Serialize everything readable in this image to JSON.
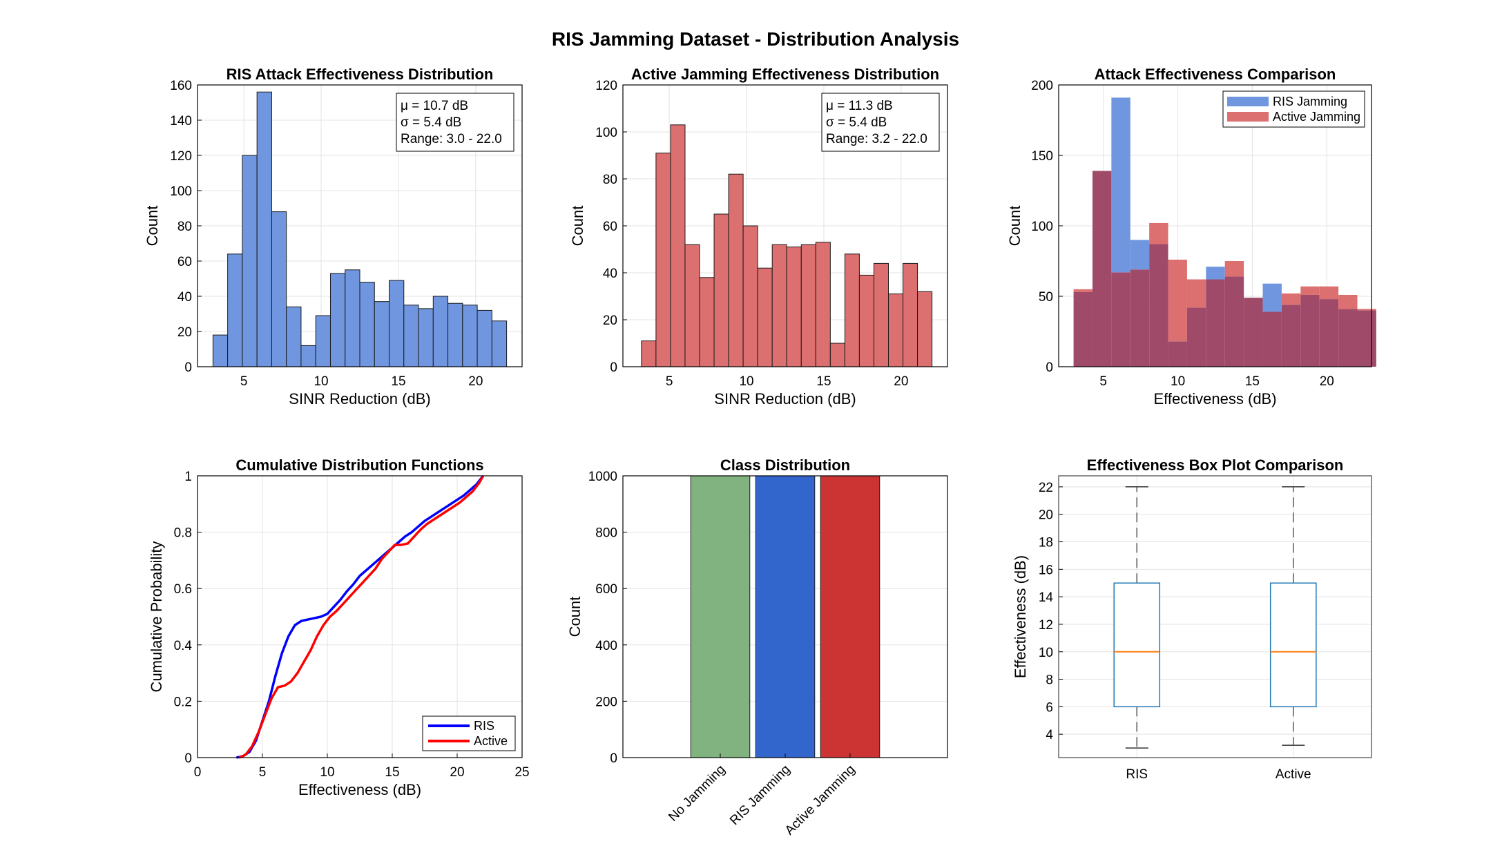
{
  "figure": {
    "title": "RIS Jamming Dataset - Distribution Analysis"
  },
  "colors": {
    "ris": "#6f96de",
    "active": "#dc6f6f",
    "overlap": "#a04a6a",
    "cdf_ris": "#0000ff",
    "cdf_active": "#ff0000",
    "class_no": "#80b380",
    "class_ris": "#3366cc",
    "class_active": "#cc3333",
    "box": "#1f77b4",
    "median": "#ff7f0e"
  },
  "chart_data": [
    {
      "id": "ris_hist",
      "type": "bar",
      "title": "RIS Attack Effectiveness Distribution",
      "xlabel": "SINR Reduction (dB)",
      "ylabel": "Count",
      "xlim": [
        2,
        23
      ],
      "ylim": [
        0,
        160
      ],
      "xticks": [
        5,
        10,
        15,
        20
      ],
      "yticks": [
        0,
        20,
        40,
        60,
        80,
        100,
        120,
        140,
        160
      ],
      "bin_start": 3.0,
      "bin_width": 0.95,
      "values": [
        18,
        64,
        120,
        156,
        88,
        34,
        12,
        29,
        53,
        55,
        48,
        37,
        49,
        35,
        33,
        40,
        36,
        35,
        32,
        26
      ],
      "stats": [
        "μ = 10.7 dB",
        "σ = 5.4 dB",
        "Range: 3.0 - 22.0"
      ]
    },
    {
      "id": "active_hist",
      "type": "bar",
      "title": "Active Jamming Effectiveness Distribution",
      "xlabel": "SINR Reduction (dB)",
      "ylabel": "Count",
      "xlim": [
        2,
        23
      ],
      "ylim": [
        0,
        120
      ],
      "xticks": [
        5,
        10,
        15,
        20
      ],
      "yticks": [
        0,
        20,
        40,
        60,
        80,
        100,
        120
      ],
      "bin_start": 3.2,
      "bin_width": 0.94,
      "values": [
        11,
        91,
        103,
        52,
        38,
        65,
        82,
        60,
        42,
        52,
        51,
        52,
        53,
        10,
        48,
        39,
        44,
        31,
        44,
        32
      ],
      "stats": [
        "μ = 11.3 dB",
        "σ = 5.4 dB",
        "Range: 3.2 - 22.0"
      ]
    },
    {
      "id": "comparison_hist",
      "type": "bar",
      "title": "Attack Effectiveness Comparison",
      "xlabel": "Effectiveness (dB)",
      "ylabel": "Count",
      "xlim": [
        2,
        23
      ],
      "ylim": [
        0,
        200
      ],
      "xticks": [
        5,
        10,
        15,
        20
      ],
      "yticks": [
        0,
        50,
        100,
        150,
        200
      ],
      "bin_start": 3.0,
      "bin_width": 1.27,
      "series": [
        {
          "name": "RIS Jamming",
          "values": [
            53,
            139,
            191,
            90,
            87,
            18,
            42,
            71,
            64,
            49,
            59,
            44,
            51,
            48,
            41,
            40
          ]
        },
        {
          "name": "Active Jamming",
          "values": [
            55,
            139,
            67,
            69,
            102,
            76,
            62,
            62,
            75,
            49,
            39,
            52,
            57,
            57,
            51,
            41
          ]
        }
      ]
    },
    {
      "id": "cdf",
      "type": "line",
      "title": "Cumulative Distribution Functions",
      "xlabel": "Effectiveness (dB)",
      "ylabel": "Cumulative Probability",
      "xlim": [
        0,
        25
      ],
      "ylim": [
        0,
        1
      ],
      "xticks": [
        0,
        5,
        10,
        15,
        20,
        25
      ],
      "yticks": [
        0,
        0.2,
        0.4,
        0.6,
        0.8,
        1
      ],
      "legend_position": "bottom-right",
      "series": [
        {
          "name": "RIS",
          "x": [
            3.0,
            3.5,
            4.0,
            4.5,
            5.0,
            5.5,
            6.0,
            6.5,
            7.0,
            7.5,
            8.0,
            8.5,
            9.0,
            9.5,
            10.0,
            10.5,
            11.0,
            11.5,
            12.0,
            12.5,
            13.0,
            13.5,
            14.0,
            14.5,
            15.0,
            15.5,
            16.0,
            16.5,
            17.0,
            17.5,
            18.0,
            18.5,
            19.0,
            19.5,
            20.0,
            20.5,
            21.0,
            21.5,
            22.0
          ],
          "y": [
            0.0,
            0.005,
            0.02,
            0.06,
            0.13,
            0.2,
            0.29,
            0.37,
            0.43,
            0.47,
            0.485,
            0.49,
            0.495,
            0.5,
            0.51,
            0.535,
            0.56,
            0.59,
            0.615,
            0.645,
            0.665,
            0.685,
            0.705,
            0.725,
            0.745,
            0.765,
            0.785,
            0.8,
            0.82,
            0.84,
            0.855,
            0.87,
            0.885,
            0.9,
            0.915,
            0.93,
            0.95,
            0.97,
            1.0
          ]
        },
        {
          "name": "Active",
          "x": [
            3.2,
            3.7,
            4.2,
            4.7,
            5.2,
            5.7,
            6.2,
            6.7,
            7.2,
            7.7,
            8.2,
            8.7,
            9.2,
            9.7,
            10.2,
            10.7,
            11.2,
            11.7,
            12.2,
            12.7,
            13.2,
            13.7,
            14.2,
            14.7,
            15.2,
            15.7,
            16.2,
            16.7,
            17.2,
            17.7,
            18.2,
            18.7,
            19.2,
            19.7,
            20.2,
            20.7,
            21.2,
            21.7,
            22.0
          ],
          "y": [
            0.0,
            0.01,
            0.04,
            0.09,
            0.15,
            0.21,
            0.25,
            0.255,
            0.27,
            0.3,
            0.34,
            0.38,
            0.43,
            0.47,
            0.5,
            0.52,
            0.545,
            0.57,
            0.595,
            0.62,
            0.645,
            0.67,
            0.705,
            0.73,
            0.755,
            0.755,
            0.76,
            0.785,
            0.81,
            0.83,
            0.845,
            0.86,
            0.875,
            0.89,
            0.905,
            0.925,
            0.945,
            0.975,
            1.0
          ]
        }
      ]
    },
    {
      "id": "class_dist",
      "type": "bar",
      "title": "Class Distribution",
      "xlabel": "",
      "ylabel": "Count",
      "ylim": [
        0,
        1000
      ],
      "yticks": [
        0,
        200,
        400,
        600,
        800,
        1000
      ],
      "categories": [
        "No Jamming",
        "RIS Jamming",
        "Active Jamming"
      ],
      "values": [
        1000,
        1000,
        1000
      ]
    },
    {
      "id": "boxplot",
      "type": "box",
      "title": "Effectiveness Box Plot Comparison",
      "xlabel": "",
      "ylabel": "Effectiveness (dB)",
      "ylim": [
        2.3,
        22.8
      ],
      "yticks": [
        4,
        6,
        8,
        10,
        12,
        14,
        16,
        18,
        20,
        22
      ],
      "categories": [
        "RIS",
        "Active"
      ],
      "boxes": [
        {
          "min": 3.0,
          "q1": 6.0,
          "median": 10.0,
          "q3": 15.0,
          "max": 22.0
        },
        {
          "min": 3.2,
          "q1": 6.0,
          "median": 10.0,
          "q3": 15.0,
          "max": 22.0
        }
      ]
    }
  ]
}
